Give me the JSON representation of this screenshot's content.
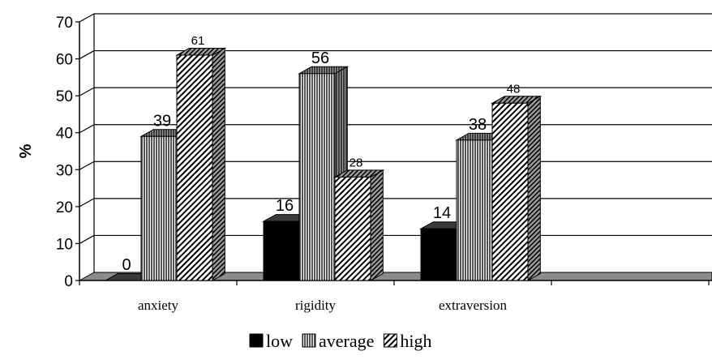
{
  "chart_data": {
    "type": "bar",
    "title": "",
    "xlabel": "",
    "ylabel": "%",
    "ylim": [
      0,
      70
    ],
    "yticks": [
      0,
      10,
      20,
      30,
      40,
      50,
      60,
      70
    ],
    "grid": true,
    "legend_position": "bottom",
    "categories": [
      "anxiety",
      "rigidity",
      "extraversion"
    ],
    "series": [
      {
        "name": "low",
        "values": [
          0,
          16,
          14
        ],
        "pattern": "solid",
        "color": "#000000"
      },
      {
        "name": "average",
        "values": [
          39,
          56,
          38
        ],
        "pattern": "fine-grey",
        "color": "#808080"
      },
      {
        "name": "high",
        "values": [
          61,
          28,
          48
        ],
        "pattern": "diagonal-hatch",
        "color": "#ffffff"
      }
    ]
  }
}
